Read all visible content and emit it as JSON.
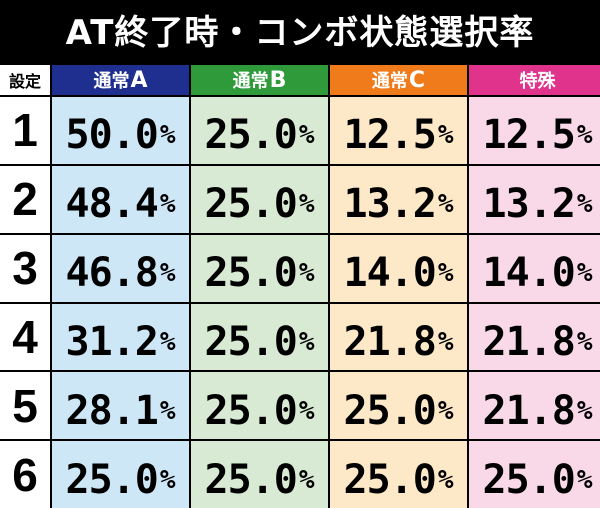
{
  "title": "AT終了時・コンボ状態選択率",
  "header": {
    "setting_label": "設定",
    "columns": [
      {
        "label": "通常",
        "suffix": "A",
        "color": "#1f2f8f"
      },
      {
        "label": "通常",
        "suffix": "B",
        "color": "#2e9a3a"
      },
      {
        "label": "通常",
        "suffix": "C",
        "color": "#f07b1a"
      },
      {
        "label": "特殊",
        "suffix": "",
        "color": "#e0338c"
      }
    ]
  },
  "rows": [
    {
      "setting": "1",
      "values": [
        "50.0",
        "25.0",
        "12.5",
        "12.5"
      ]
    },
    {
      "setting": "2",
      "values": [
        "48.4",
        "25.0",
        "13.2",
        "13.2"
      ]
    },
    {
      "setting": "3",
      "values": [
        "46.8",
        "25.0",
        "14.0",
        "14.0"
      ]
    },
    {
      "setting": "4",
      "values": [
        "31.2",
        "25.0",
        "21.8",
        "21.8"
      ]
    },
    {
      "setting": "5",
      "values": [
        "28.1",
        "25.0",
        "25.0",
        "21.8"
      ]
    },
    {
      "setting": "6",
      "values": [
        "25.0",
        "25.0",
        "25.0",
        "25.0"
      ]
    }
  ],
  "unit": "%",
  "colors": {
    "background": "#000000",
    "normal_a_cell": "#cde7f7",
    "normal_b_cell": "#d8ead3",
    "normal_c_cell": "#fde9c8",
    "special_cell": "#f9d9e8"
  }
}
